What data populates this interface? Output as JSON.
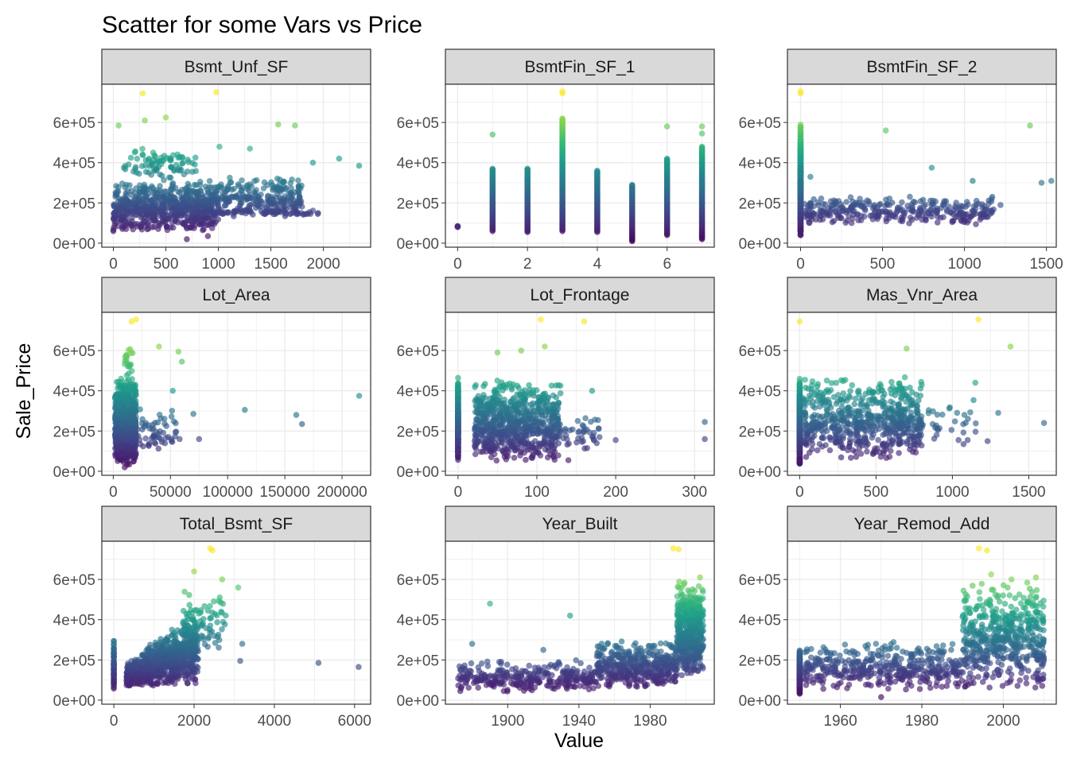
{
  "chart_data": {
    "type": "scatter",
    "title": "Scatter for some Vars vs Price",
    "xlabel": "Value",
    "ylabel": "Sale_Price",
    "grid": true,
    "legend": "none",
    "color_scale": "viridis by Sale_Price",
    "colors": {
      "low": "#440154",
      "mid": "#21908c",
      "high": "#fde725",
      "strip_fill": "#d9d9d9",
      "grid": "#ebebeb",
      "border": "#333333"
    },
    "ylim": [
      -20000,
      790000
    ],
    "yticks": [
      0,
      200000,
      400000,
      600000
    ],
    "ytick_labels": [
      "0e+00",
      "2e+05",
      "4e+05",
      "6e+05"
    ],
    "panels": [
      {
        "name": "Bsmt_Unf_SF",
        "xlim": [
          -110,
          2450
        ],
        "xticks": [
          0,
          500,
          1000,
          1500,
          2000
        ],
        "xtick_labels": [
          "0",
          "500",
          "1000",
          "1500",
          "2000"
        ],
        "sample_points": [
          [
            280,
            745000
          ],
          [
            980,
            750000
          ],
          [
            500,
            625000
          ],
          [
            50,
            585000
          ],
          [
            300,
            610000
          ],
          [
            1570,
            590000
          ],
          [
            1730,
            585000
          ],
          [
            2340,
            385000
          ],
          [
            2150,
            420000
          ],
          [
            1900,
            400000
          ],
          [
            1010,
            480000
          ],
          [
            1300,
            470000
          ],
          [
            100,
            375000
          ],
          [
            400,
            430000
          ],
          [
            1950,
            150000
          ],
          [
            900,
            35000
          ],
          [
            700,
            20000
          ],
          [
            0,
            60000
          ]
        ],
        "clusters": [
          {
            "x": [
              0,
              1000
            ],
            "y": [
              60000,
              320000
            ],
            "n": 700
          },
          {
            "x": [
              1000,
              1800
            ],
            "y": [
              130000,
              330000
            ],
            "n": 220
          },
          {
            "x": [
              100,
              800
            ],
            "y": [
              320000,
              480000
            ],
            "n": 80
          },
          {
            "x": [
              1000,
              1950
            ],
            "y": [
              140000,
              170000
            ],
            "n": 60
          }
        ]
      },
      {
        "name": "BsmtFin_SF_1",
        "xlim": [
          -0.35,
          7.35
        ],
        "xticks": [
          0,
          2,
          4,
          6
        ],
        "xtick_labels": [
          "0",
          "2",
          "4",
          "6"
        ],
        "columns": [
          {
            "x": 0,
            "y": [
              80000,
              85000
            ]
          },
          {
            "x": 1,
            "y": [
              60000,
              370000
            ],
            "outliers": [
              540000
            ]
          },
          {
            "x": 2,
            "y": [
              55000,
              370000
            ]
          },
          {
            "x": 3,
            "y": [
              60000,
              620000
            ],
            "outliers": [
              745000,
              755000
            ]
          },
          {
            "x": 4,
            "y": [
              55000,
              360000
            ]
          },
          {
            "x": 5,
            "y": [
              10000,
              290000
            ]
          },
          {
            "x": 6,
            "y": [
              40000,
              420000
            ],
            "outliers": [
              580000
            ]
          },
          {
            "x": 7,
            "y": [
              20000,
              480000
            ],
            "outliers": [
              545000,
              580000
            ]
          }
        ]
      },
      {
        "name": "BsmtFin_SF_2",
        "xlim": [
          -80,
          1560
        ],
        "xticks": [
          0,
          500,
          1000,
          1500
        ],
        "xtick_labels": [
          "0",
          "500",
          "1000",
          "1500"
        ],
        "sample_points": [
          [
            0,
            745000
          ],
          [
            0,
            755000
          ],
          [
            520,
            560000
          ],
          [
            1400,
            585000
          ],
          [
            1530,
            310000
          ],
          [
            1470,
            300000
          ],
          [
            1220,
            190000
          ],
          [
            1170,
            230000
          ],
          [
            60,
            330000
          ],
          [
            800,
            375000
          ],
          [
            1050,
            310000
          ]
        ],
        "clusters": [
          {
            "x": [
              0,
              0
            ],
            "y": [
              20000,
              620000
            ],
            "n": 400
          },
          {
            "x": [
              20,
              1180
            ],
            "y": [
              90000,
              240000
            ],
            "n": 320
          }
        ]
      },
      {
        "name": "Lot_Area",
        "xlim": [
          -10000,
          225000
        ],
        "xticks": [
          0,
          50000,
          100000,
          150000,
          200000
        ],
        "xtick_labels": [
          "0",
          "50000",
          "100000",
          "150000",
          "200000"
        ],
        "sample_points": [
          [
            20000,
            755000
          ],
          [
            16000,
            745000
          ],
          [
            40000,
            620000
          ],
          [
            57000,
            595000
          ],
          [
            60000,
            545000
          ],
          [
            215000,
            375000
          ],
          [
            115000,
            305000
          ],
          [
            160000,
            280000
          ],
          [
            165000,
            235000
          ],
          [
            52000,
            400000
          ],
          [
            70000,
            285000
          ],
          [
            58000,
            160000
          ],
          [
            75000,
            160000
          ],
          [
            10000,
            20000
          ]
        ],
        "clusters": [
          {
            "x": [
              1500,
              20000
            ],
            "y": [
              30000,
              470000
            ],
            "n": 800
          },
          {
            "x": [
              10000,
              17000
            ],
            "y": [
              470000,
              620000
            ],
            "n": 20
          },
          {
            "x": [
              18000,
              55000
            ],
            "y": [
              110000,
              320000
            ],
            "n": 60
          }
        ]
      },
      {
        "name": "Lot_Frontage",
        "xlim": [
          -16,
          325
        ],
        "xticks": [
          0,
          100,
          200,
          300
        ],
        "xtick_labels": [
          "0",
          "100",
          "200",
          "300"
        ],
        "sample_points": [
          [
            105,
            755000
          ],
          [
            160,
            745000
          ],
          [
            110,
            620000
          ],
          [
            313,
            245000
          ],
          [
            313,
            160000
          ],
          [
            200,
            155000
          ],
          [
            170,
            400000
          ],
          [
            140,
            55000
          ],
          [
            80,
            600000
          ],
          [
            50,
            590000
          ]
        ],
        "clusters": [
          {
            "x": [
              0,
              0
            ],
            "y": [
              50000,
              470000
            ],
            "n": 300
          },
          {
            "x": [
              21,
              130
            ],
            "y": [
              40000,
              470000
            ],
            "n": 700
          },
          {
            "x": [
              130,
              180
            ],
            "y": [
              100000,
              300000
            ],
            "n": 40
          }
        ]
      },
      {
        "name": "Mas_Vnr_Area",
        "xlim": [
          -80,
          1680
        ],
        "xticks": [
          0,
          500,
          1000,
          1500
        ],
        "xtick_labels": [
          "0",
          "500",
          "1000",
          "1500"
        ],
        "sample_points": [
          [
            0,
            745000
          ],
          [
            1170,
            755000
          ],
          [
            1380,
            620000
          ],
          [
            700,
            610000
          ],
          [
            1600,
            240000
          ],
          [
            1300,
            290000
          ],
          [
            1230,
            150000
          ],
          [
            1100,
            155000
          ],
          [
            1040,
            155000
          ],
          [
            1150,
            440000
          ]
        ],
        "clusters": [
          {
            "x": [
              0,
              0
            ],
            "y": [
              30000,
              470000
            ],
            "n": 400
          },
          {
            "x": [
              20,
              800
            ],
            "y": [
              60000,
              480000
            ],
            "n": 600
          },
          {
            "x": [
              600,
              1200
            ],
            "y": [
              120000,
              400000
            ],
            "n": 50
          }
        ]
      },
      {
        "name": "Total_Bsmt_SF",
        "xlim": [
          -300,
          6400
        ],
        "xticks": [
          0,
          2000,
          4000,
          6000
        ],
        "xtick_labels": [
          "0",
          "2000",
          "4000",
          "6000"
        ],
        "sample_points": [
          [
            2400,
            755000
          ],
          [
            2460,
            745000
          ],
          [
            3100,
            560000
          ],
          [
            3200,
            280000
          ],
          [
            3150,
            195000
          ],
          [
            5100,
            185000
          ],
          [
            6100,
            165000
          ],
          [
            2000,
            640000
          ],
          [
            2700,
            600000
          ]
        ],
        "clusters": [
          {
            "x": [
              0,
              0
            ],
            "y": [
              40000,
              330000
            ],
            "n": 60
          },
          {
            "x": [
              300,
              2100
            ],
            "y": [
              40000,
              460000
            ],
            "n": 850,
            "corr": true
          },
          {
            "x": [
              1700,
              2800
            ],
            "y": [
              250000,
              560000
            ],
            "n": 80
          }
        ]
      },
      {
        "name": "Year_Built",
        "xlim": [
          1865,
          2016
        ],
        "xticks": [
          1900,
          1940,
          1980
        ],
        "xtick_labels": [
          "1900",
          "1940",
          "1980"
        ],
        "sample_points": [
          [
            1993,
            755000
          ],
          [
            1996,
            750000
          ],
          [
            1890,
            480000
          ],
          [
            1875,
            130000
          ],
          [
            1880,
            280000
          ],
          [
            1935,
            420000
          ],
          [
            1920,
            250000
          ],
          [
            2008,
            610000
          ]
        ],
        "clusters": [
          {
            "x": [
              1872,
              1950
            ],
            "y": [
              40000,
              200000
            ],
            "n": 300
          },
          {
            "x": [
              1950,
              1995
            ],
            "y": [
              60000,
              300000
            ],
            "n": 400
          },
          {
            "x": [
              1995,
              2010
            ],
            "y": [
              120000,
              620000
            ],
            "n": 400
          }
        ]
      },
      {
        "name": "Year_Remod_Add",
        "xlim": [
          1947,
          2013
        ],
        "xticks": [
          1960,
          1980,
          2000
        ],
        "xtick_labels": [
          "1960",
          "1980",
          "2000"
        ],
        "sample_points": [
          [
            1994,
            755000
          ],
          [
            1996,
            745000
          ],
          [
            1997,
            625000
          ],
          [
            2008,
            610000
          ],
          [
            2002,
            600000
          ],
          [
            1970,
            15000
          ]
        ],
        "clusters": [
          {
            "x": [
              1950,
              1950
            ],
            "y": [
              30000,
              260000
            ],
            "n": 200
          },
          {
            "x": [
              1951,
              1990
            ],
            "y": [
              50000,
              300000
            ],
            "n": 400
          },
          {
            "x": [
              1990,
              2010
            ],
            "y": [
              60000,
              600000
            ],
            "n": 500
          }
        ]
      }
    ]
  }
}
